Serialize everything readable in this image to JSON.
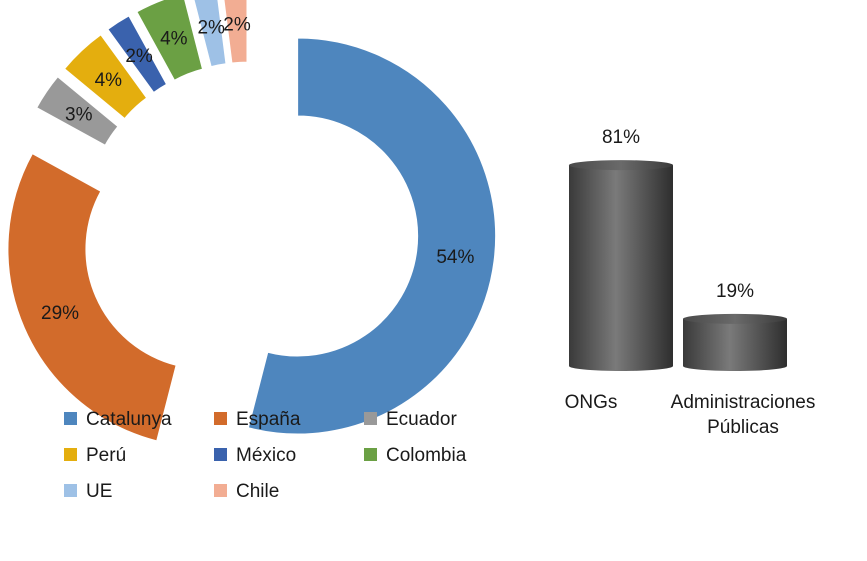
{
  "chart_data": [
    {
      "type": "donut",
      "categories": [
        "Catalunya",
        "España",
        "Ecuador",
        "Perú",
        "México",
        "Colombia",
        "UE",
        "Chile"
      ],
      "values": [
        54,
        29,
        3,
        4,
        2,
        4,
        2,
        2
      ],
      "data_labels": [
        "54%",
        "29%",
        "3%",
        "4%",
        "2%",
        "4%",
        "2%",
        "2%"
      ],
      "colors": [
        "#4E86BE",
        "#D26B2B",
        "#999999",
        "#E4AE0E",
        "#3A62AD",
        "#6BA044",
        "#9EC1E6",
        "#F2AD93"
      ],
      "exploded": true,
      "legend": {
        "placement": "bottom",
        "entries": [
          "Catalunya",
          "España",
          "Ecuador",
          "Perú",
          "México",
          "Colombia",
          "UE",
          "Chile"
        ]
      },
      "title": ""
    },
    {
      "type": "bar",
      "style": "3d-cylinder",
      "categories": [
        "ONGs",
        "Administraciones Públicas"
      ],
      "category_lines": [
        [
          "ONGs"
        ],
        [
          "Administraciones",
          "Públicas"
        ]
      ],
      "values": [
        81,
        19
      ],
      "data_labels": [
        "81%",
        "19%"
      ],
      "color": "#595959",
      "title": "",
      "xlabel": "",
      "ylabel": ""
    }
  ]
}
